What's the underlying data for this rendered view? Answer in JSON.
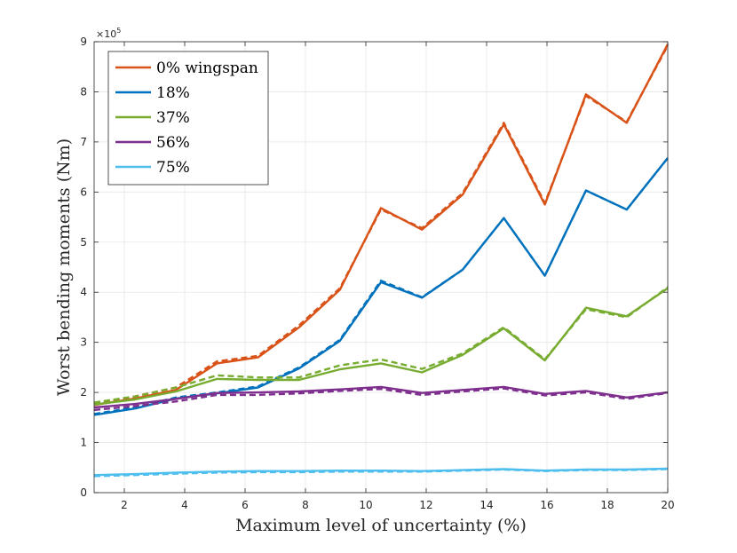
{
  "chart_data": {
    "type": "line",
    "xlabel": "Maximum level of uncertainty (%)",
    "ylabel": "Worst bending moments (Nm)",
    "y_exponent_label": "×10",
    "y_exponent_power": "5",
    "xlim": [
      1,
      20
    ],
    "ylim": [
      0,
      9
    ],
    "x_ticks": [
      2,
      4,
      6,
      8,
      10,
      12,
      14,
      16,
      18,
      20
    ],
    "y_ticks": [
      0,
      1,
      2,
      3,
      4,
      5,
      6,
      7,
      8,
      9
    ],
    "grid": true,
    "legend_position": "top-left",
    "x": [
      1,
      2.36,
      3.71,
      5.07,
      6.43,
      7.79,
      9.14,
      10.5,
      11.86,
      13.21,
      14.57,
      15.93,
      17.29,
      18.64,
      20
    ],
    "series": [
      {
        "name": "0% wingspan",
        "color": "#d95319",
        "values": [
          1.75,
          1.88,
          2.05,
          2.58,
          2.7,
          3.3,
          4.05,
          5.68,
          5.25,
          5.95,
          7.35,
          5.75,
          7.95,
          7.38,
          8.95
        ],
        "dashed_values": [
          1.78,
          1.92,
          2.1,
          2.62,
          2.73,
          3.34,
          4.08,
          5.65,
          5.28,
          5.98,
          7.38,
          5.78,
          7.92,
          7.4,
          8.92
        ]
      },
      {
        "name": "18%",
        "color": "#0072bd",
        "values": [
          1.55,
          1.68,
          1.88,
          1.98,
          2.1,
          2.48,
          3.03,
          4.2,
          3.89,
          4.45,
          5.48,
          4.33,
          6.03,
          5.65,
          6.68
        ],
        "dashed_values": [
          1.57,
          1.7,
          1.9,
          2.0,
          2.12,
          2.5,
          3.05,
          4.23,
          3.9,
          4.45,
          5.48,
          4.33,
          6.03,
          5.65,
          6.68
        ]
      },
      {
        "name": "37%",
        "color": "#77ac30",
        "values": [
          1.76,
          1.86,
          2.02,
          2.27,
          2.25,
          2.25,
          2.46,
          2.58,
          2.4,
          2.75,
          3.28,
          2.64,
          3.69,
          3.52,
          4.08
        ],
        "dashed_values": [
          1.8,
          1.92,
          2.1,
          2.34,
          2.3,
          2.3,
          2.54,
          2.66,
          2.47,
          2.78,
          3.3,
          2.66,
          3.66,
          3.5,
          4.1
        ]
      },
      {
        "name": "56%",
        "color": "#7e2f8e",
        "values": [
          1.7,
          1.77,
          1.87,
          1.99,
          2.0,
          2.02,
          2.06,
          2.11,
          1.99,
          2.05,
          2.11,
          1.97,
          2.03,
          1.9,
          2.0
        ],
        "dashed_values": [
          1.65,
          1.73,
          1.82,
          1.95,
          1.95,
          1.98,
          2.03,
          2.07,
          1.95,
          2.02,
          2.08,
          1.94,
          2.0,
          1.87,
          1.99
        ]
      },
      {
        "name": "75%",
        "color": "#4dbeee",
        "values": [
          0.35,
          0.37,
          0.4,
          0.42,
          0.43,
          0.43,
          0.44,
          0.44,
          0.43,
          0.45,
          0.47,
          0.44,
          0.46,
          0.46,
          0.48
        ],
        "dashed_values": [
          0.33,
          0.35,
          0.38,
          0.4,
          0.41,
          0.41,
          0.42,
          0.42,
          0.42,
          0.44,
          0.46,
          0.43,
          0.45,
          0.45,
          0.47
        ]
      }
    ]
  }
}
